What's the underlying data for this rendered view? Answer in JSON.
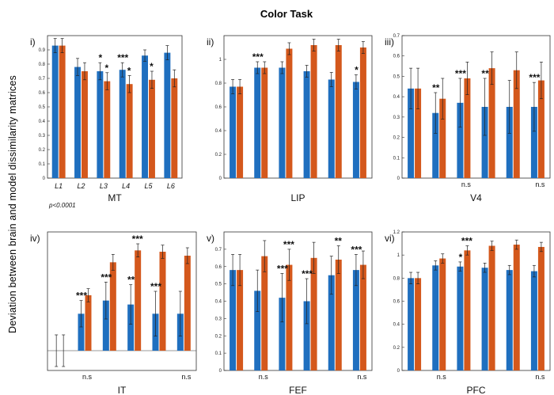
{
  "figure": {
    "title": "Color Task",
    "ylabel": "Deviation between brain and model dissimilarity matrices",
    "note": "p<0.0001",
    "colors": {
      "brain": "#1f6fbf",
      "model": "#d4581c",
      "error": "#222222",
      "axis": "#333333"
    }
  },
  "chart_data": [
    {
      "type": "bar",
      "panel": "i)",
      "xlabel": "MT",
      "ylim": [
        0,
        1
      ],
      "yticks": [
        "0",
        "0.1",
        "0.2",
        "0.3",
        "0.4",
        "0.5",
        "0.6",
        "0.7",
        "0.8",
        "0.9"
      ],
      "categories": [
        "L1",
        "L2",
        "L3",
        "L4",
        "L5",
        "L6"
      ],
      "series": [
        {
          "values": [
            0.93,
            0.78,
            0.75,
            0.76,
            0.86,
            0.88
          ],
          "errors": [
            0.05,
            0.06,
            0.06,
            0.05,
            0.04,
            0.05
          ]
        },
        {
          "values": [
            0.93,
            0.75,
            0.68,
            0.66,
            0.69,
            0.7
          ],
          "errors": [
            0.05,
            0.06,
            0.06,
            0.06,
            0.06,
            0.06
          ]
        }
      ],
      "annotations": [
        {
          "text": "*",
          "cat": 2,
          "series": 0
        },
        {
          "text": "*",
          "cat": 2,
          "series": 1
        },
        {
          "text": "***",
          "cat": 3,
          "series": 0
        },
        {
          "text": "*",
          "cat": 3,
          "series": 1
        },
        {
          "text": "*",
          "cat": 4,
          "series": 1
        }
      ]
    },
    {
      "type": "bar",
      "panel": "ii)",
      "xlabel": "LIP",
      "ylim": [
        0,
        1.2
      ],
      "yticks": [
        "0",
        "0.2",
        "0.4",
        "0.6",
        "0.8",
        "1"
      ],
      "categories": [
        "",
        "",
        "",
        "",
        "",
        ""
      ],
      "series": [
        {
          "values": [
            0.77,
            0.93,
            0.93,
            0.9,
            0.83,
            0.81
          ],
          "errors": [
            0.06,
            0.05,
            0.05,
            0.05,
            0.06,
            0.06
          ]
        },
        {
          "values": [
            0.77,
            0.93,
            1.09,
            1.12,
            1.12,
            1.1
          ],
          "errors": [
            0.06,
            0.05,
            0.05,
            0.05,
            0.05,
            0.05
          ]
        }
      ],
      "annotations": [
        {
          "text": "***",
          "cat": 1,
          "series": 0
        },
        {
          "text": "*",
          "cat": 5,
          "series": 0
        }
      ]
    },
    {
      "type": "bar",
      "panel": "iii)",
      "xlabel": "V4",
      "ylim": [
        0,
        0.7
      ],
      "yticks": [
        "0",
        "0.1",
        "0.2",
        "0.3",
        "0.4",
        "0.5",
        "0.6",
        "0.7"
      ],
      "categories": [
        "",
        "",
        "",
        "",
        "",
        ""
      ],
      "series": [
        {
          "values": [
            0.44,
            0.32,
            0.37,
            0.35,
            0.35,
            0.35
          ],
          "errors": [
            0.1,
            0.1,
            0.12,
            0.14,
            0.13,
            0.12
          ]
        },
        {
          "values": [
            0.44,
            0.39,
            0.49,
            0.54,
            0.53,
            0.48
          ],
          "errors": [
            0.1,
            0.1,
            0.08,
            0.08,
            0.09,
            0.09
          ]
        }
      ],
      "annotations": [
        {
          "text": "**",
          "cat": 1,
          "series": 0
        },
        {
          "text": "***",
          "cat": 2,
          "series": 0
        },
        {
          "text": "**",
          "cat": 3,
          "series": 0
        },
        {
          "text": "***",
          "cat": 5,
          "series": 0
        },
        {
          "text": "n.s",
          "cat": 2,
          "below": true
        },
        {
          "text": "n.s",
          "cat": 5,
          "below": true
        }
      ]
    },
    {
      "type": "bar",
      "panel": "iv)",
      "xlabel": "IT",
      "ylim": [
        -0.15,
        0.9
      ],
      "yticks": [],
      "categories": [
        "",
        "",
        "",
        "",
        "",
        ""
      ],
      "series": [
        {
          "values": [
            0.0,
            0.28,
            0.38,
            0.35,
            0.28,
            0.28
          ],
          "errors": [
            0.12,
            0.1,
            0.14,
            0.15,
            0.17,
            0.17
          ]
        },
        {
          "values": [
            0.0,
            0.42,
            0.67,
            0.76,
            0.75,
            0.72
          ],
          "errors": [
            0.12,
            0.05,
            0.06,
            0.05,
            0.05,
            0.06
          ]
        }
      ],
      "annotations": [
        {
          "text": "***",
          "cat": 1,
          "series": 0
        },
        {
          "text": "***",
          "cat": 2,
          "series": 0
        },
        {
          "text": "***",
          "cat": 3,
          "series": 1
        },
        {
          "text": "**",
          "cat": 3,
          "series": 0
        },
        {
          "text": "***",
          "cat": 4,
          "series": 0
        },
        {
          "text": "n.s",
          "cat": 1,
          "below": true
        },
        {
          "text": "n.s",
          "cat": 5,
          "below": true
        }
      ]
    },
    {
      "type": "bar",
      "panel": "v)",
      "xlabel": "FEF",
      "ylim": [
        0,
        0.8
      ],
      "yticks": [
        "0",
        "0.1",
        "0.2",
        "0.3",
        "0.4",
        "0.5",
        "0.6",
        "0.7"
      ],
      "categories": [
        "",
        "",
        "",
        "",
        "",
        ""
      ],
      "series": [
        {
          "values": [
            0.58,
            0.46,
            0.42,
            0.4,
            0.55,
            0.58
          ],
          "errors": [
            0.09,
            0.12,
            0.14,
            0.13,
            0.11,
            0.09
          ]
        },
        {
          "values": [
            0.58,
            0.66,
            0.61,
            0.65,
            0.64,
            0.61
          ],
          "errors": [
            0.09,
            0.09,
            0.09,
            0.09,
            0.08,
            0.08
          ]
        }
      ],
      "annotations": [
        {
          "text": "***",
          "cat": 2,
          "series": 0
        },
        {
          "text": "***",
          "cat": 2,
          "series": 1
        },
        {
          "text": "***",
          "cat": 3,
          "series": 0
        },
        {
          "text": "**",
          "cat": 4,
          "series": 1
        },
        {
          "text": "***",
          "cat": 5,
          "series": 0
        },
        {
          "text": "n.s",
          "cat": 1,
          "below": true
        },
        {
          "text": "n.s",
          "cat": 5,
          "below": true
        }
      ]
    },
    {
      "type": "bar",
      "panel": "vi)",
      "xlabel": "PFC",
      "ylim": [
        0,
        1.2
      ],
      "yticks": [
        "0",
        "0.2",
        "0.4",
        "0.6",
        "0.8",
        "1",
        "1.2"
      ],
      "categories": [
        "",
        "",
        "",
        "",
        "",
        ""
      ],
      "series": [
        {
          "values": [
            0.8,
            0.91,
            0.9,
            0.89,
            0.87,
            0.86
          ],
          "errors": [
            0.05,
            0.04,
            0.04,
            0.04,
            0.04,
            0.05
          ]
        },
        {
          "values": [
            0.8,
            0.97,
            1.04,
            1.08,
            1.09,
            1.07
          ],
          "errors": [
            0.05,
            0.04,
            0.04,
            0.04,
            0.04,
            0.04
          ]
        }
      ],
      "annotations": [
        {
          "text": "*",
          "cat": 2,
          "series": 0
        },
        {
          "text": "***",
          "cat": 2,
          "series": 1
        },
        {
          "text": "n.s",
          "cat": 1,
          "below": true
        },
        {
          "text": "n.s",
          "cat": 5,
          "below": true
        }
      ]
    }
  ]
}
